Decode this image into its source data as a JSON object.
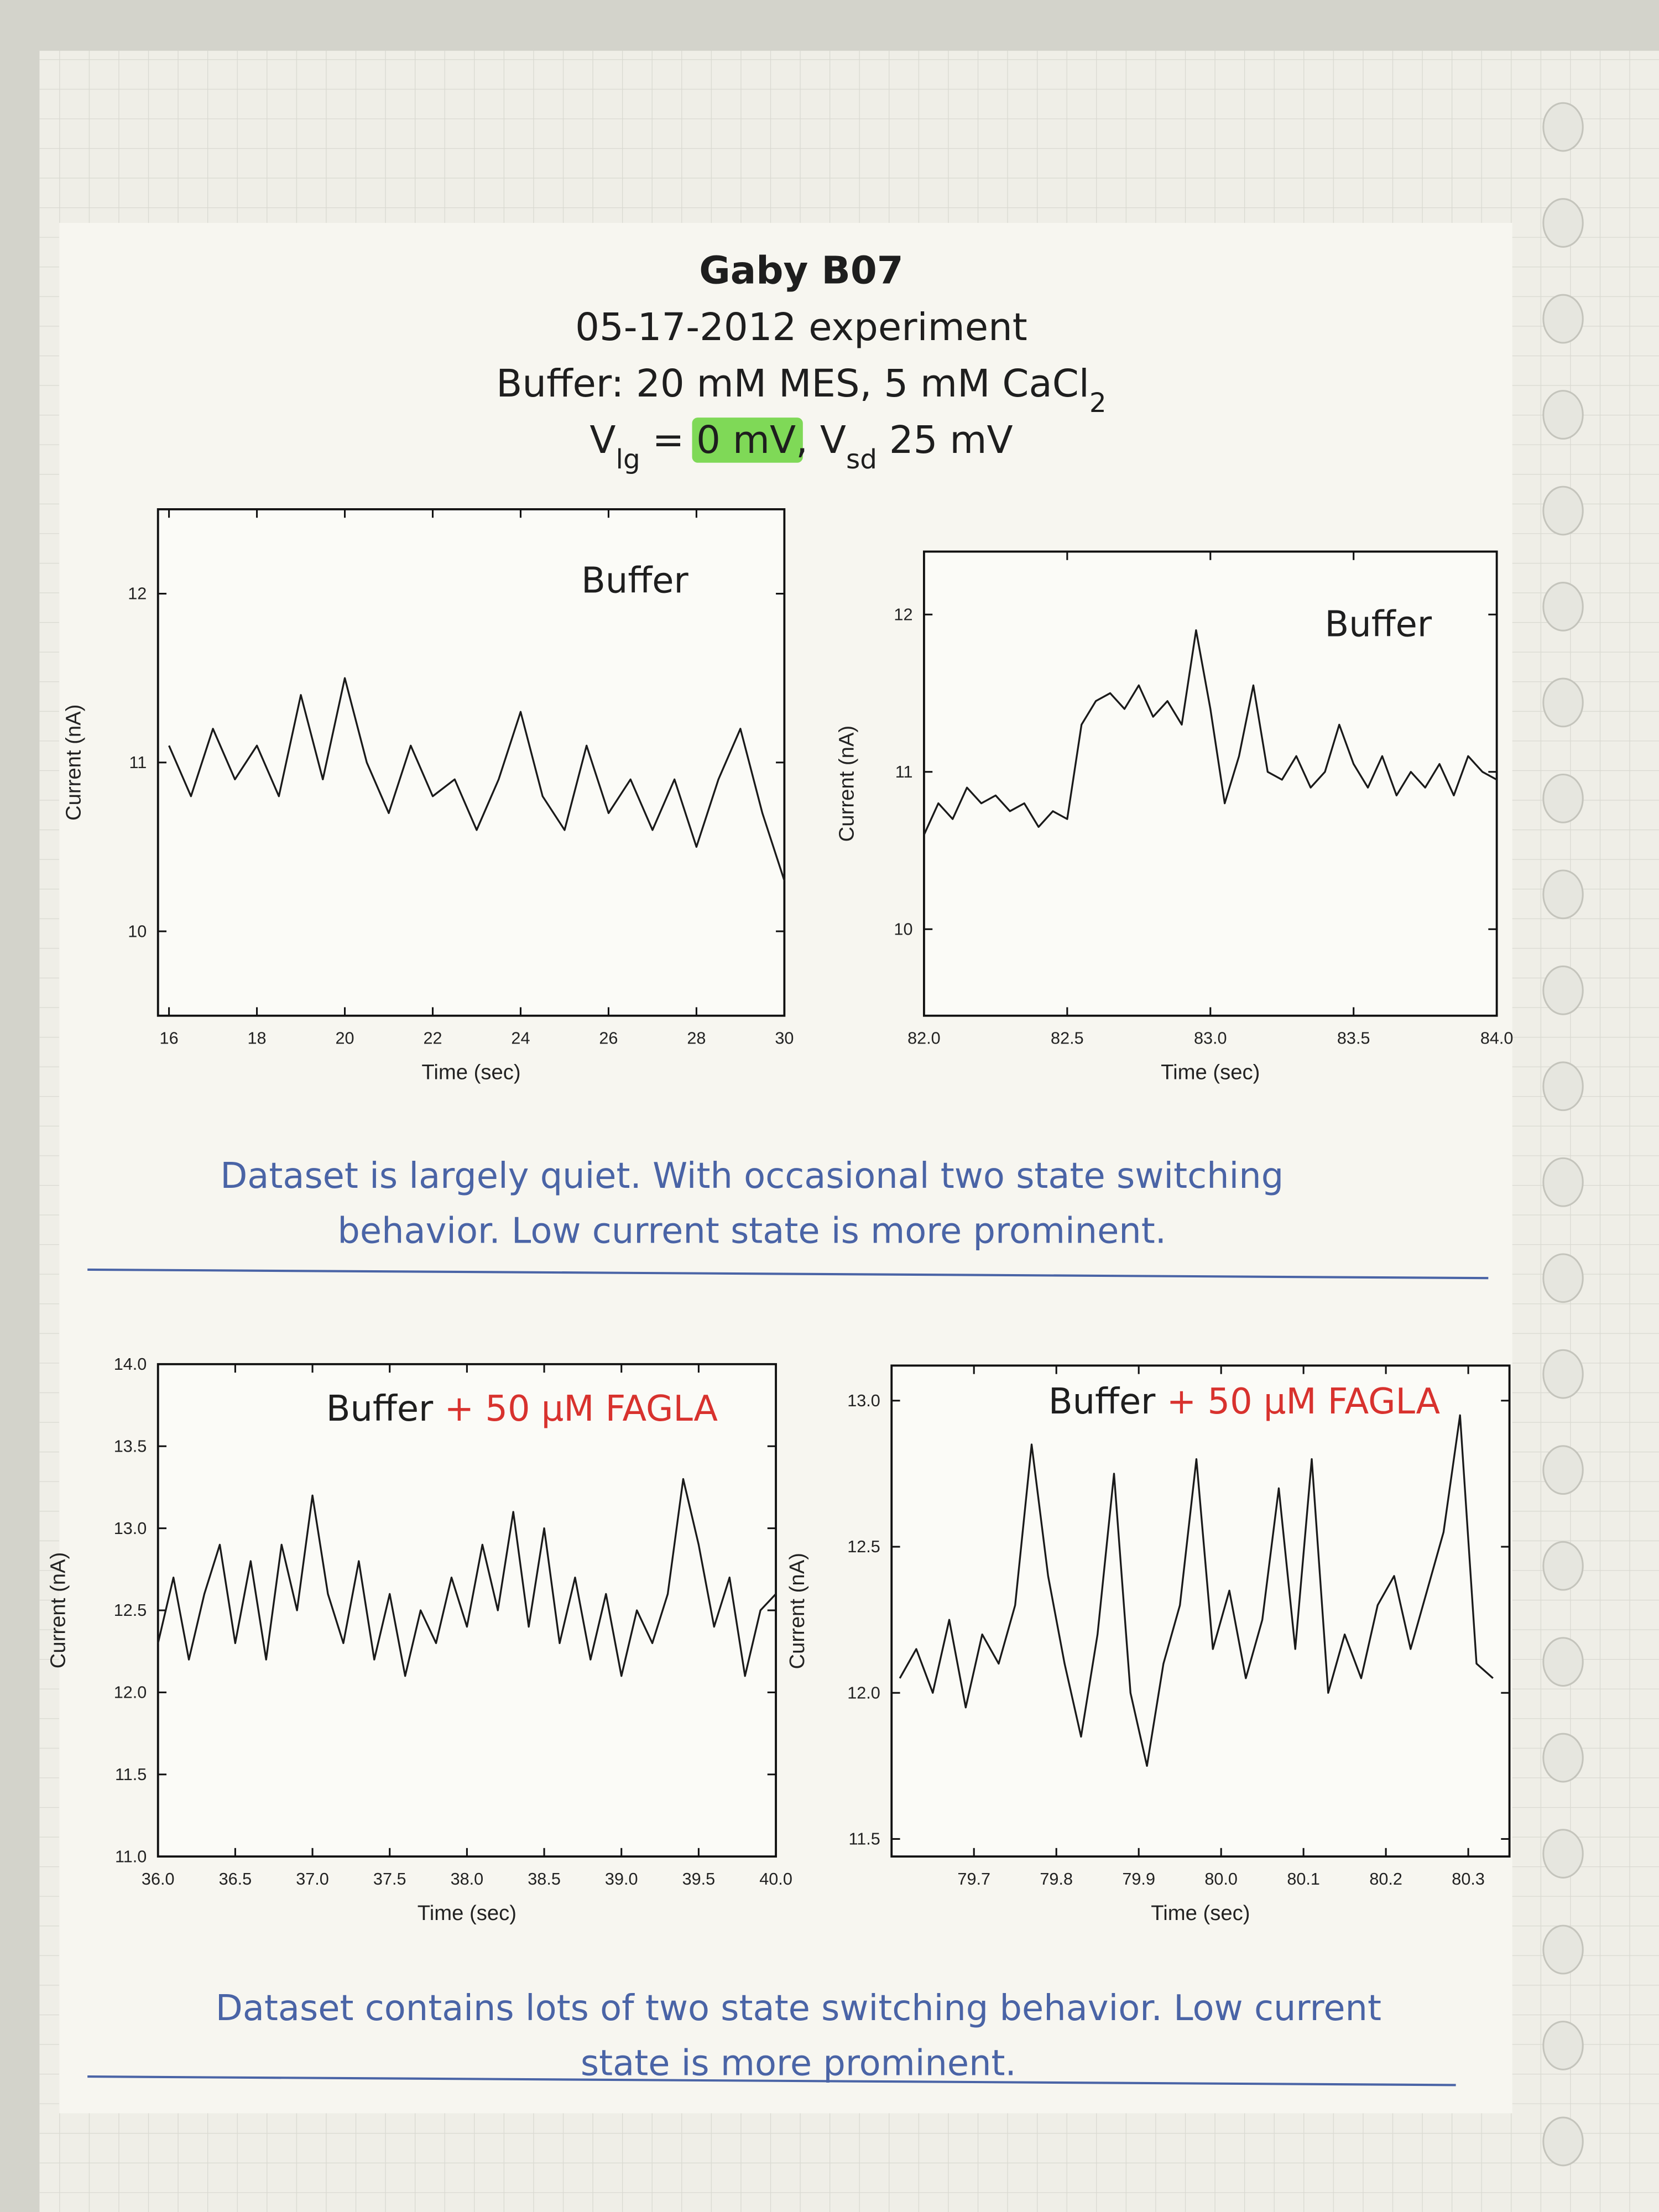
{
  "header": {
    "title": "Gaby B07",
    "date": "05-17-2012 experiment",
    "buffer_line": [
      {
        "text": "Buffer: 20 mM MES, 5 mM CaCl"
      },
      {
        "text": "2",
        "sub": true
      }
    ],
    "bias_line": [
      {
        "text": "V"
      },
      {
        "text": "lg",
        "sub": true
      },
      {
        "text": " = "
      },
      {
        "text": "0 mV",
        "highlight": "#7fd957"
      },
      {
        "text": ", V"
      },
      {
        "text": "sd",
        "sub": true
      },
      {
        "text": " 25 mV"
      }
    ]
  },
  "chart_data": [
    {
      "type": "line",
      "title": "Buffer",
      "xlabel": "Time (sec)",
      "ylabel": "Current (nA)",
      "color": "#1a1a1a",
      "x": [
        16,
        16.5,
        17,
        17.5,
        18,
        18.5,
        19,
        19.5,
        20,
        20.5,
        21,
        21.5,
        22,
        22.5,
        23,
        23.5,
        24,
        24.5,
        25,
        25.5,
        26,
        26.5,
        27,
        27.5,
        28,
        28.5,
        29,
        29.5,
        30
      ],
      "values": [
        11.1,
        10.8,
        11.2,
        10.9,
        11.1,
        10.8,
        11.4,
        10.9,
        11.5,
        11.0,
        10.7,
        11.1,
        10.8,
        10.9,
        10.6,
        10.9,
        11.3,
        10.8,
        10.6,
        11.1,
        10.7,
        10.9,
        10.6,
        10.9,
        10.5,
        10.9,
        11.2,
        10.7,
        10.3
      ],
      "xlim": [
        15.75,
        30
      ],
      "ylim": [
        9.5,
        12.5
      ],
      "xticks": [
        16,
        18,
        20,
        22,
        24,
        26,
        28,
        30
      ],
      "yticks": [
        10,
        11,
        12
      ]
    },
    {
      "type": "line",
      "title": "Buffer",
      "xlabel": "Time (sec)",
      "ylabel": "Current (nA)",
      "color": "#1a1a1a",
      "x": [
        82.0,
        82.05,
        82.1,
        82.15,
        82.2,
        82.25,
        82.3,
        82.35,
        82.4,
        82.45,
        82.5,
        82.55,
        82.6,
        82.65,
        82.7,
        82.75,
        82.8,
        82.85,
        82.9,
        82.95,
        83.0,
        83.05,
        83.1,
        83.15,
        83.2,
        83.25,
        83.3,
        83.35,
        83.4,
        83.45,
        83.5,
        83.55,
        83.6,
        83.65,
        83.7,
        83.75,
        83.8,
        83.85,
        83.9,
        83.95,
        84.0
      ],
      "values": [
        10.6,
        10.8,
        10.7,
        10.9,
        10.8,
        10.85,
        10.75,
        10.8,
        10.65,
        10.75,
        10.7,
        11.3,
        11.45,
        11.5,
        11.4,
        11.55,
        11.35,
        11.45,
        11.3,
        11.9,
        11.4,
        10.8,
        11.1,
        11.55,
        11.0,
        10.95,
        11.1,
        10.9,
        11.0,
        11.3,
        11.05,
        10.9,
        11.1,
        10.85,
        11.0,
        10.9,
        11.05,
        10.85,
        11.1,
        11.0,
        10.95
      ],
      "xlim": [
        82,
        84
      ],
      "ylim": [
        9.45,
        12.4
      ],
      "xticks": [
        {
          "value": 82,
          "label": "82.0"
        },
        82.5,
        {
          "value": 83,
          "label": "83.0"
        },
        83.5,
        {
          "value": 84,
          "label": "84.0"
        }
      ],
      "yticks": [
        10,
        11,
        12
      ]
    },
    {
      "type": "line",
      "title": "Buffer",
      "title_note": "+ 50 μM FAGLA",
      "title_note_color": "#d8322e",
      "xlabel": "Time (sec)",
      "ylabel": "Current (nA)",
      "color": "#1a1a1a",
      "x": [
        36.0,
        36.1,
        36.2,
        36.3,
        36.4,
        36.5,
        36.6,
        36.7,
        36.8,
        36.9,
        37.0,
        37.1,
        37.2,
        37.3,
        37.4,
        37.5,
        37.6,
        37.7,
        37.8,
        37.9,
        38.0,
        38.1,
        38.2,
        38.3,
        38.4,
        38.5,
        38.6,
        38.7,
        38.8,
        38.9,
        39.0,
        39.1,
        39.2,
        39.3,
        39.4,
        39.5,
        39.6,
        39.7,
        39.8,
        39.9,
        40.0
      ],
      "values": [
        12.3,
        12.7,
        12.2,
        12.6,
        12.9,
        12.3,
        12.8,
        12.2,
        12.9,
        12.5,
        13.2,
        12.6,
        12.3,
        12.8,
        12.2,
        12.6,
        12.1,
        12.5,
        12.3,
        12.7,
        12.4,
        12.9,
        12.5,
        13.1,
        12.4,
        13.0,
        12.3,
        12.7,
        12.2,
        12.6,
        12.1,
        12.5,
        12.3,
        12.6,
        13.3,
        12.9,
        12.4,
        12.7,
        12.1,
        12.5,
        12.6
      ],
      "xlim": [
        36,
        40
      ],
      "ylim": [
        11,
        14
      ],
      "xticks": [
        {
          "value": 36,
          "label": "36.0"
        },
        36.5,
        {
          "value": 37,
          "label": "37.0"
        },
        37.5,
        {
          "value": 38,
          "label": "38.0"
        },
        38.5,
        {
          "value": 39,
          "label": "39.0"
        },
        39.5,
        {
          "value": 40,
          "label": "40.0"
        }
      ],
      "yticks": [
        {
          "value": 11,
          "label": "11.0"
        },
        11.5,
        {
          "value": 12,
          "label": "12.0"
        },
        12.5,
        {
          "value": 13,
          "label": "13.0"
        },
        13.5,
        {
          "value": 14,
          "label": "14.0"
        }
      ]
    },
    {
      "type": "line",
      "title": "Buffer",
      "title_note": "+ 50 μM FAGLA",
      "title_note_color": "#d8322e",
      "xlabel": "Time (sec)",
      "ylabel": "Current (nA)",
      "color": "#1a1a1a",
      "x": [
        79.61,
        79.63,
        79.65,
        79.67,
        79.69,
        79.71,
        79.73,
        79.75,
        79.77,
        79.79,
        79.81,
        79.83,
        79.85,
        79.87,
        79.89,
        79.91,
        79.93,
        79.95,
        79.97,
        79.99,
        80.01,
        80.03,
        80.05,
        80.07,
        80.09,
        80.11,
        80.13,
        80.15,
        80.17,
        80.19,
        80.21,
        80.23,
        80.25,
        80.27,
        80.29,
        80.31,
        80.33
      ],
      "values": [
        12.05,
        12.15,
        12.0,
        12.25,
        11.95,
        12.2,
        12.1,
        12.3,
        12.85,
        12.4,
        12.1,
        11.85,
        12.2,
        12.75,
        12.0,
        11.75,
        12.1,
        12.3,
        12.8,
        12.15,
        12.35,
        12.05,
        12.25,
        12.7,
        12.15,
        12.8,
        12.0,
        12.2,
        12.05,
        12.3,
        12.4,
        12.15,
        12.35,
        12.55,
        12.95,
        12.1,
        12.05
      ],
      "xlim": [
        79.6,
        80.35
      ],
      "ylim": [
        11.44,
        13.12
      ],
      "xticks": [
        79.7,
        79.8,
        79.9,
        {
          "value": 80,
          "label": "80.0"
        },
        80.1,
        80.2,
        80.3
      ],
      "yticks": [
        11.5,
        {
          "value": 12,
          "label": "12.0"
        },
        12.5,
        {
          "value": 13,
          "label": "13.0"
        }
      ]
    }
  ],
  "notes": [
    [
      "Dataset is largely quiet. With occasional two state switching",
      "behavior. Low current state is more prominent."
    ],
    [
      "Dataset contains lots of two state switching behavior. Low current",
      "state is more prominent."
    ]
  ]
}
